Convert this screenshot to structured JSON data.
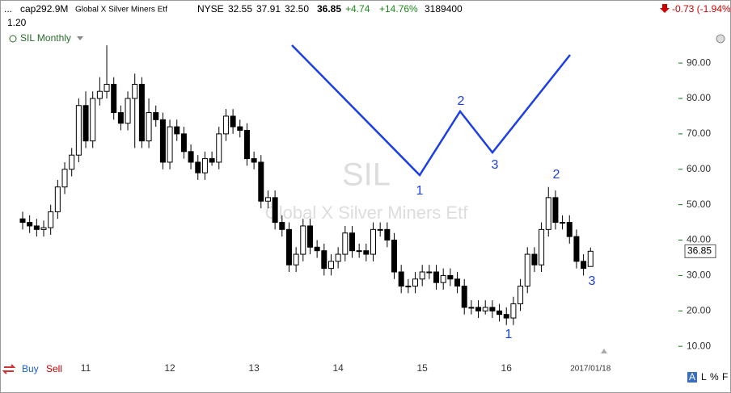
{
  "header": {
    "ellipsis": "...",
    "cap": "cap292.9M",
    "name": "Global X Silver Miners Etf",
    "exchange": "NYSE",
    "open": "32.55",
    "high": "37.91",
    "low": "32.50",
    "last": "36.85",
    "change": "+4.74",
    "change_pct": "+14.76%",
    "volume": "3189400",
    "right_change": "-0.73 (-1.94%)",
    "line2": "1.20"
  },
  "toolbar": {
    "buy": "Buy",
    "sell": "Sell",
    "options": [
      "A",
      "L",
      "%",
      "F"
    ]
  },
  "chart_data": {
    "type": "candlestick",
    "title": "SIL Monthly",
    "watermark_symbol": "SIL",
    "watermark_name": "Global X Silver Miners Etf",
    "categories": [
      null,
      null,
      null,
      null,
      null,
      null,
      null,
      null,
      null,
      "11",
      null,
      null,
      null,
      null,
      null,
      null,
      null,
      null,
      null,
      null,
      null,
      "12",
      null,
      null,
      null,
      null,
      null,
      null,
      null,
      null,
      null,
      null,
      null,
      "13",
      null,
      null,
      null,
      null,
      null,
      null,
      null,
      null,
      null,
      null,
      null,
      "14",
      null,
      null,
      null,
      null,
      null,
      null,
      null,
      null,
      null,
      null,
      null,
      "15",
      null,
      null,
      null,
      null,
      null,
      null,
      null,
      null,
      null,
      null,
      null,
      "16",
      null,
      null,
      null,
      null,
      null,
      null,
      null,
      null,
      null,
      null,
      null,
      "2017/01/18"
    ],
    "open": [
      46,
      45,
      44,
      43,
      43.5,
      48,
      55,
      60,
      64,
      78,
      68,
      80,
      82,
      84,
      76,
      73,
      80,
      84,
      68,
      76,
      74,
      62,
      72,
      70,
      65,
      62,
      59,
      63,
      62,
      70,
      75,
      72,
      71,
      63,
      62,
      51,
      52,
      45,
      43,
      33,
      36,
      44,
      38,
      37,
      32,
      34,
      36,
      42,
      37,
      37,
      36,
      43,
      43,
      40,
      31,
      27,
      27,
      29,
      31,
      31,
      28,
      30,
      29,
      27,
      21,
      21,
      20,
      21,
      20,
      19,
      18,
      22,
      27,
      36,
      33,
      43,
      52,
      45,
      45,
      41,
      34,
      32.55
    ],
    "high": [
      48,
      47,
      46,
      45.5,
      50,
      57,
      62,
      66,
      80,
      82,
      82,
      86,
      95,
      86,
      78,
      82,
      87,
      86,
      80,
      78,
      76,
      74,
      74,
      72,
      67,
      64,
      65,
      65,
      72,
      77,
      77,
      74,
      73,
      65,
      64,
      54,
      54,
      47,
      45,
      38,
      46,
      46,
      40,
      39,
      36,
      38,
      44,
      44,
      39,
      39,
      45,
      45,
      45,
      42,
      33,
      29,
      31,
      33,
      33,
      33,
      32,
      32,
      31,
      29,
      23,
      23,
      23,
      23,
      22,
      21,
      24,
      29,
      38,
      38,
      45,
      55,
      54,
      47,
      47,
      43,
      36,
      37.91
    ],
    "low": [
      43,
      42,
      41,
      41,
      41.5,
      46,
      53,
      58,
      62,
      66,
      66,
      78,
      80,
      74,
      71,
      71,
      66,
      66,
      66,
      72,
      60,
      60,
      68,
      63,
      60,
      57,
      57,
      61,
      60,
      68,
      70,
      69,
      61,
      60,
      49,
      49,
      43,
      41,
      31,
      31,
      34,
      36,
      35,
      30,
      30,
      32,
      34,
      35,
      35,
      34,
      34,
      41,
      38,
      29,
      25,
      25,
      25,
      27,
      29,
      26,
      26,
      27,
      25,
      19,
      19,
      18,
      19,
      18,
      17,
      16,
      16,
      20,
      25,
      31,
      31,
      41,
      43,
      43,
      39,
      32,
      30,
      32.5
    ],
    "close": [
      45,
      44,
      43,
      43.5,
      48,
      55,
      60,
      64,
      78,
      68,
      80,
      82,
      84,
      76,
      73,
      80,
      84,
      68,
      76,
      74,
      62,
      72,
      70,
      65,
      62,
      59,
      63,
      62,
      70,
      75,
      72,
      71,
      63,
      62,
      51,
      52,
      45,
      43,
      33,
      36,
      44,
      38,
      37,
      32,
      34,
      36,
      42,
      37,
      37,
      36,
      43,
      43,
      40,
      31,
      27,
      27,
      29,
      31,
      31,
      28,
      30,
      29,
      27,
      21,
      21,
      20,
      21,
      20,
      19,
      18,
      22,
      27,
      36,
      33,
      43,
      52,
      45,
      45,
      41,
      34,
      32,
      36.85
    ],
    "ylim": [
      7.3,
      99.6
    ],
    "yticks": [
      {
        "value": 10,
        "label": "10.00"
      },
      {
        "value": 20,
        "label": "20.00"
      },
      {
        "value": 30,
        "label": "30.00"
      },
      {
        "value": 40,
        "label": "40.00"
      },
      {
        "value": 50,
        "label": "50.00"
      },
      {
        "value": 60,
        "label": "60.00"
      },
      {
        "value": 70,
        "label": "70.00"
      },
      {
        "value": 80,
        "label": "80.00"
      },
      {
        "value": 90,
        "label": "90.00"
      }
    ],
    "annotations": [
      "1",
      "2",
      "3",
      "1",
      "2",
      "3"
    ],
    "up_color": "#ffffff",
    "down_color": "#000000",
    "axis_color": "#0a7a0a"
  }
}
